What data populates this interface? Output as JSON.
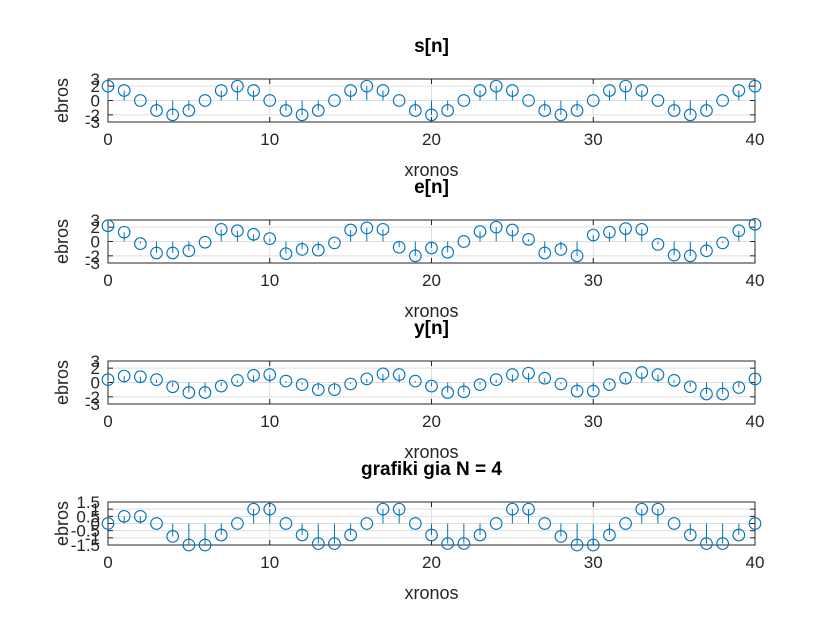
{
  "chart_data": [
    {
      "type": "stem",
      "title": "s[n]",
      "xlabel": "xronos",
      "ylabel": "ebros",
      "xlim": [
        0,
        40
      ],
      "ylim": [
        -3,
        3
      ],
      "yticks": [
        -3,
        -2,
        0,
        2,
        3
      ],
      "ytick_labels": [
        "-3",
        "-2",
        "0",
        "2",
        "3"
      ],
      "xticks": [
        0,
        10,
        20,
        30,
        40
      ],
      "xtick_labels": [
        "0",
        "10",
        "20",
        "30",
        "40"
      ],
      "grid": true,
      "color": "#0072bd",
      "x": [
        0,
        1,
        2,
        3,
        4,
        5,
        6,
        7,
        8,
        9,
        10,
        11,
        12,
        13,
        14,
        15,
        16,
        17,
        18,
        19,
        20,
        21,
        22,
        23,
        24,
        25,
        26,
        27,
        28,
        29,
        30,
        31,
        32,
        33,
        34,
        35,
        36,
        37,
        38,
        39,
        40
      ],
      "values": [
        2.0,
        1.4,
        0.0,
        -1.4,
        -2.0,
        -1.4,
        0.0,
        1.4,
        2.0,
        1.4,
        0.0,
        -1.4,
        -2.0,
        -1.4,
        0.0,
        1.4,
        2.0,
        1.4,
        0.0,
        -1.4,
        -2.0,
        -1.4,
        0.0,
        1.4,
        2.0,
        1.4,
        0.0,
        -1.4,
        -2.0,
        -1.4,
        0.0,
        1.4,
        2.0,
        1.4,
        0.0,
        -1.4,
        -2.0,
        -1.4,
        0.0,
        1.4,
        2.0
      ]
    },
    {
      "type": "stem",
      "title": "e[n]",
      "xlabel": "xronos",
      "ylabel": "ebros",
      "xlim": [
        0,
        40
      ],
      "ylim": [
        -3,
        3
      ],
      "yticks": [
        -3,
        -2,
        0,
        2,
        3
      ],
      "ytick_labels": [
        "-3",
        "-2",
        "0",
        "2",
        "3"
      ],
      "xticks": [
        0,
        10,
        20,
        30,
        40
      ],
      "xtick_labels": [
        "0",
        "10",
        "20",
        "30",
        "40"
      ],
      "grid": true,
      "color": "#0072bd",
      "x": [
        0,
        1,
        2,
        3,
        4,
        5,
        6,
        7,
        8,
        9,
        10,
        11,
        12,
        13,
        14,
        15,
        16,
        17,
        18,
        19,
        20,
        21,
        22,
        23,
        24,
        25,
        26,
        27,
        28,
        29,
        30,
        31,
        32,
        33,
        34,
        35,
        36,
        37,
        38,
        39,
        40
      ],
      "values": [
        2.2,
        1.3,
        -0.3,
        -1.6,
        -1.6,
        -1.3,
        -0.1,
        1.7,
        1.5,
        1.0,
        0.4,
        -1.7,
        -1.1,
        -1.2,
        -0.2,
        1.6,
        1.9,
        1.7,
        -0.8,
        -2.0,
        -0.9,
        -1.5,
        0.0,
        1.4,
        2.0,
        1.6,
        0.3,
        -1.6,
        -1.1,
        -2.0,
        0.9,
        1.3,
        1.8,
        1.7,
        -0.4,
        -1.9,
        -2.0,
        -1.3,
        -0.2,
        1.5,
        2.4
      ]
    },
    {
      "type": "stem",
      "title": "y[n]",
      "xlabel": "xronos",
      "ylabel": "ebros",
      "xlim": [
        0,
        40
      ],
      "ylim": [
        -3,
        3
      ],
      "yticks": [
        -3,
        -2,
        0,
        2,
        3
      ],
      "ytick_labels": [
        "-3",
        "-2",
        "0",
        "2",
        "3"
      ],
      "xticks": [
        0,
        10,
        20,
        30,
        40
      ],
      "xtick_labels": [
        "0",
        "10",
        "20",
        "30",
        "40"
      ],
      "grid": true,
      "color": "#0072bd",
      "x": [
        0,
        1,
        2,
        3,
        4,
        5,
        6,
        7,
        8,
        9,
        10,
        11,
        12,
        13,
        14,
        15,
        16,
        17,
        18,
        19,
        20,
        21,
        22,
        23,
        24,
        25,
        26,
        27,
        28,
        29,
        30,
        31,
        32,
        33,
        34,
        35,
        36,
        37,
        38,
        39,
        40
      ],
      "values": [
        0.4,
        0.9,
        0.8,
        0.4,
        -0.6,
        -1.4,
        -1.4,
        -0.5,
        0.3,
        1.0,
        1.1,
        0.2,
        -0.3,
        -1.0,
        -1.0,
        -0.2,
        0.5,
        1.2,
        1.1,
        0.2,
        -0.5,
        -1.4,
        -1.3,
        -0.3,
        0.4,
        1.1,
        1.3,
        0.6,
        -0.2,
        -1.2,
        -1.2,
        -0.3,
        0.6,
        1.4,
        1.1,
        0.3,
        -0.6,
        -1.6,
        -1.6,
        -0.7,
        0.5
      ]
    },
    {
      "type": "stem",
      "title": "grafiki gia N = 4",
      "xlabel": "xronos",
      "ylabel": "ebros",
      "xlim": [
        0,
        40
      ],
      "ylim": [
        -1.5,
        1.5
      ],
      "yticks": [
        -1.5,
        -1,
        -0.5,
        0,
        0.5,
        1,
        1.5
      ],
      "ytick_labels": [
        "-1.5",
        "-1",
        "-0.5",
        "0",
        "0.5",
        "1",
        "1.5"
      ],
      "xticks": [
        0,
        10,
        20,
        30,
        40
      ],
      "xtick_labels": [
        "0",
        "10",
        "20",
        "30",
        "40"
      ],
      "grid": true,
      "color": "#0072bd",
      "x": [
        0,
        1,
        2,
        3,
        4,
        5,
        6,
        7,
        8,
        9,
        10,
        11,
        12,
        13,
        14,
        15,
        16,
        17,
        18,
        19,
        20,
        21,
        22,
        23,
        24,
        25,
        26,
        27,
        28,
        29,
        30,
        31,
        32,
        33,
        34,
        35,
        36,
        37,
        38,
        39,
        40
      ],
      "values": [
        0.0,
        0.5,
        0.5,
        0.0,
        -0.9,
        -1.5,
        -1.5,
        -0.8,
        0.0,
        1.0,
        1.0,
        0.0,
        -0.8,
        -1.4,
        -1.4,
        -0.8,
        0.0,
        1.0,
        1.0,
        0.0,
        -0.8,
        -1.4,
        -1.4,
        -0.8,
        0.0,
        1.0,
        1.0,
        0.0,
        -0.9,
        -1.5,
        -1.5,
        -0.8,
        0.0,
        1.0,
        1.0,
        0.0,
        -0.8,
        -1.4,
        -1.4,
        -0.8,
        0.0
      ]
    }
  ]
}
